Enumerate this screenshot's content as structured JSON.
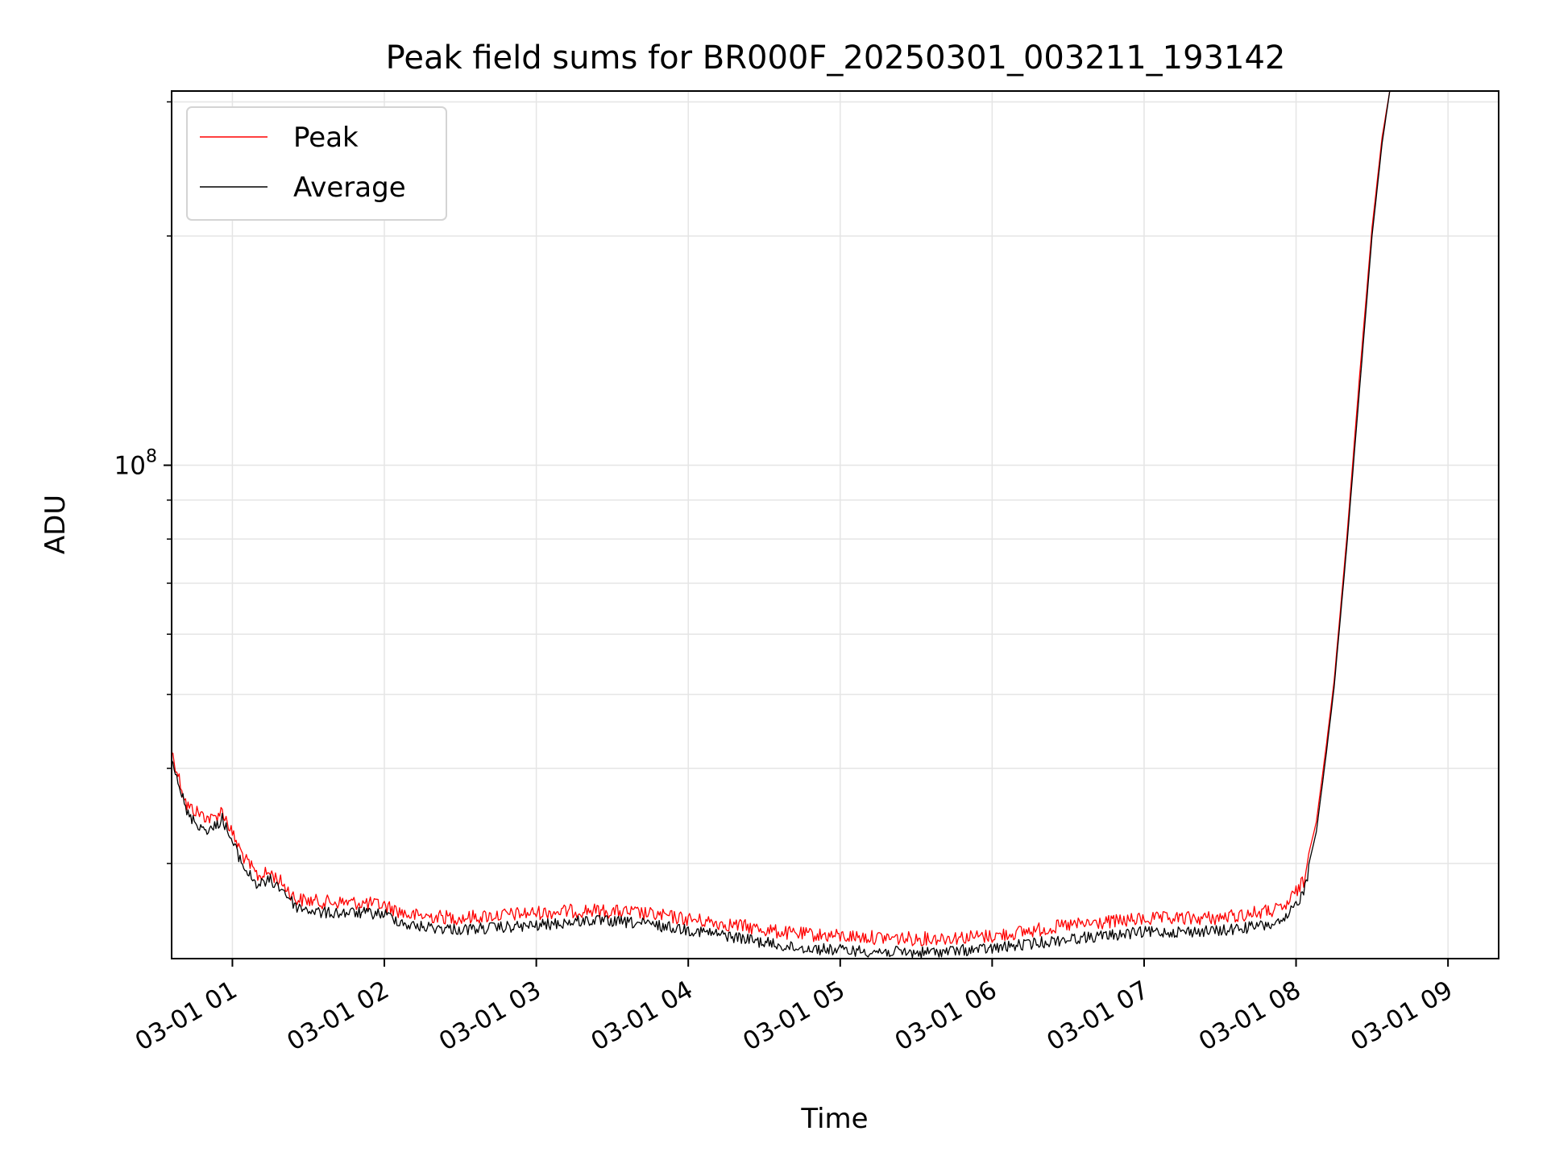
{
  "chart_data": {
    "type": "line",
    "title": "Peak field sums for BR000F_20250301_003211_193142",
    "xlabel": "Time",
    "ylabel": "ADU",
    "y_scale": "log",
    "grid": true,
    "legend_position": "top-left",
    "xlim": [
      "2025-03-01 00:36",
      "2025-03-01 09:20"
    ],
    "ylim": [
      22500000,
      310000000
    ],
    "x_ticks": [
      "03-01 01",
      "03-01 02",
      "03-01 03",
      "03-01 04",
      "03-01 05",
      "03-01 06",
      "03-01 07",
      "03-01 08",
      "03-01 09"
    ],
    "y_ticks": [
      {
        "label": "10",
        "exponent": "8",
        "value": 100000000
      }
    ],
    "y_minor_ticks": [
      30000000,
      40000000,
      50000000,
      60000000,
      70000000,
      80000000,
      90000000,
      200000000,
      300000000
    ],
    "series": [
      {
        "name": "Peak",
        "color": "#ff0000",
        "points": [
          [
            "2025-03-01 00:36",
            43000000
          ],
          [
            "2025-03-01 00:42",
            36500000
          ],
          [
            "2025-03-01 00:48",
            35500000
          ],
          [
            "2025-03-01 00:52",
            35000000
          ],
          [
            "2025-03-01 00:56",
            36000000
          ],
          [
            "2025-03-01 01:00",
            33500000
          ],
          [
            "2025-03-01 01:05",
            31000000
          ],
          [
            "2025-03-01 01:10",
            29500000
          ],
          [
            "2025-03-01 01:15",
            29800000
          ],
          [
            "2025-03-01 01:20",
            28800000
          ],
          [
            "2025-03-01 01:25",
            27500000
          ],
          [
            "2025-03-01 01:35",
            27300000
          ],
          [
            "2025-03-01 01:50",
            27200000
          ],
          [
            "2025-03-01 02:00",
            27000000
          ],
          [
            "2025-03-01 02:10",
            26200000
          ],
          [
            "2025-03-01 02:30",
            26000000
          ],
          [
            "2025-03-01 03:00",
            26400000
          ],
          [
            "2025-03-01 03:20",
            26600000
          ],
          [
            "2025-03-01 03:40",
            26400000
          ],
          [
            "2025-03-01 04:00",
            25900000
          ],
          [
            "2025-03-01 04:20",
            25400000
          ],
          [
            "2025-03-01 04:40",
            24800000
          ],
          [
            "2025-03-01 05:00",
            24600000
          ],
          [
            "2025-03-01 05:30",
            24400000
          ],
          [
            "2025-03-01 06:00",
            24600000
          ],
          [
            "2025-03-01 06:30",
            25400000
          ],
          [
            "2025-03-01 07:00",
            25900000
          ],
          [
            "2025-03-01 07:30",
            26000000
          ],
          [
            "2025-03-01 07:55",
            26700000
          ],
          [
            "2025-03-01 08:03",
            29000000
          ],
          [
            "2025-03-01 08:08",
            34000000
          ],
          [
            "2025-03-01 08:12",
            43000000
          ],
          [
            "2025-03-01 08:15",
            52000000
          ],
          [
            "2025-03-01 08:20",
            80000000
          ],
          [
            "2025-03-01 08:25",
            130000000
          ],
          [
            "2025-03-01 08:30",
            205000000
          ],
          [
            "2025-03-01 08:34",
            270000000
          ],
          [
            "2025-03-01 08:37",
            310000000
          ]
        ]
      },
      {
        "name": "Average",
        "color": "#000000",
        "points": [
          [
            "2025-03-01 00:36",
            42500000
          ],
          [
            "2025-03-01 00:42",
            35500000
          ],
          [
            "2025-03-01 00:48",
            34000000
          ],
          [
            "2025-03-01 00:52",
            33800000
          ],
          [
            "2025-03-01 00:56",
            35000000
          ],
          [
            "2025-03-01 01:00",
            32500000
          ],
          [
            "2025-03-01 01:05",
            30000000
          ],
          [
            "2025-03-01 01:10",
            28600000
          ],
          [
            "2025-03-01 01:15",
            29000000
          ],
          [
            "2025-03-01 01:20",
            28200000
          ],
          [
            "2025-03-01 01:25",
            26800000
          ],
          [
            "2025-03-01 01:35",
            26300000
          ],
          [
            "2025-03-01 01:50",
            26300000
          ],
          [
            "2025-03-01 02:00",
            26200000
          ],
          [
            "2025-03-01 02:10",
            25300000
          ],
          [
            "2025-03-01 02:30",
            25000000
          ],
          [
            "2025-03-01 03:00",
            25300000
          ],
          [
            "2025-03-01 03:20",
            25700000
          ],
          [
            "2025-03-01 03:40",
            25500000
          ],
          [
            "2025-03-01 04:00",
            25000000
          ],
          [
            "2025-03-01 04:20",
            24400000
          ],
          [
            "2025-03-01 04:40",
            23700000
          ],
          [
            "2025-03-01 05:00",
            23500000
          ],
          [
            "2025-03-01 05:30",
            23300000
          ],
          [
            "2025-03-01 06:00",
            23600000
          ],
          [
            "2025-03-01 06:30",
            24300000
          ],
          [
            "2025-03-01 07:00",
            24800000
          ],
          [
            "2025-03-01 07:30",
            24900000
          ],
          [
            "2025-03-01 07:55",
            25500000
          ],
          [
            "2025-03-01 08:03",
            28000000
          ],
          [
            "2025-03-01 08:08",
            33000000
          ],
          [
            "2025-03-01 08:12",
            42000000
          ],
          [
            "2025-03-01 08:15",
            51000000
          ],
          [
            "2025-03-01 08:20",
            78000000
          ],
          [
            "2025-03-01 08:25",
            125000000
          ],
          [
            "2025-03-01 08:30",
            200000000
          ],
          [
            "2025-03-01 08:34",
            265000000
          ],
          [
            "2025-03-01 08:37",
            310000000
          ]
        ]
      }
    ]
  }
}
